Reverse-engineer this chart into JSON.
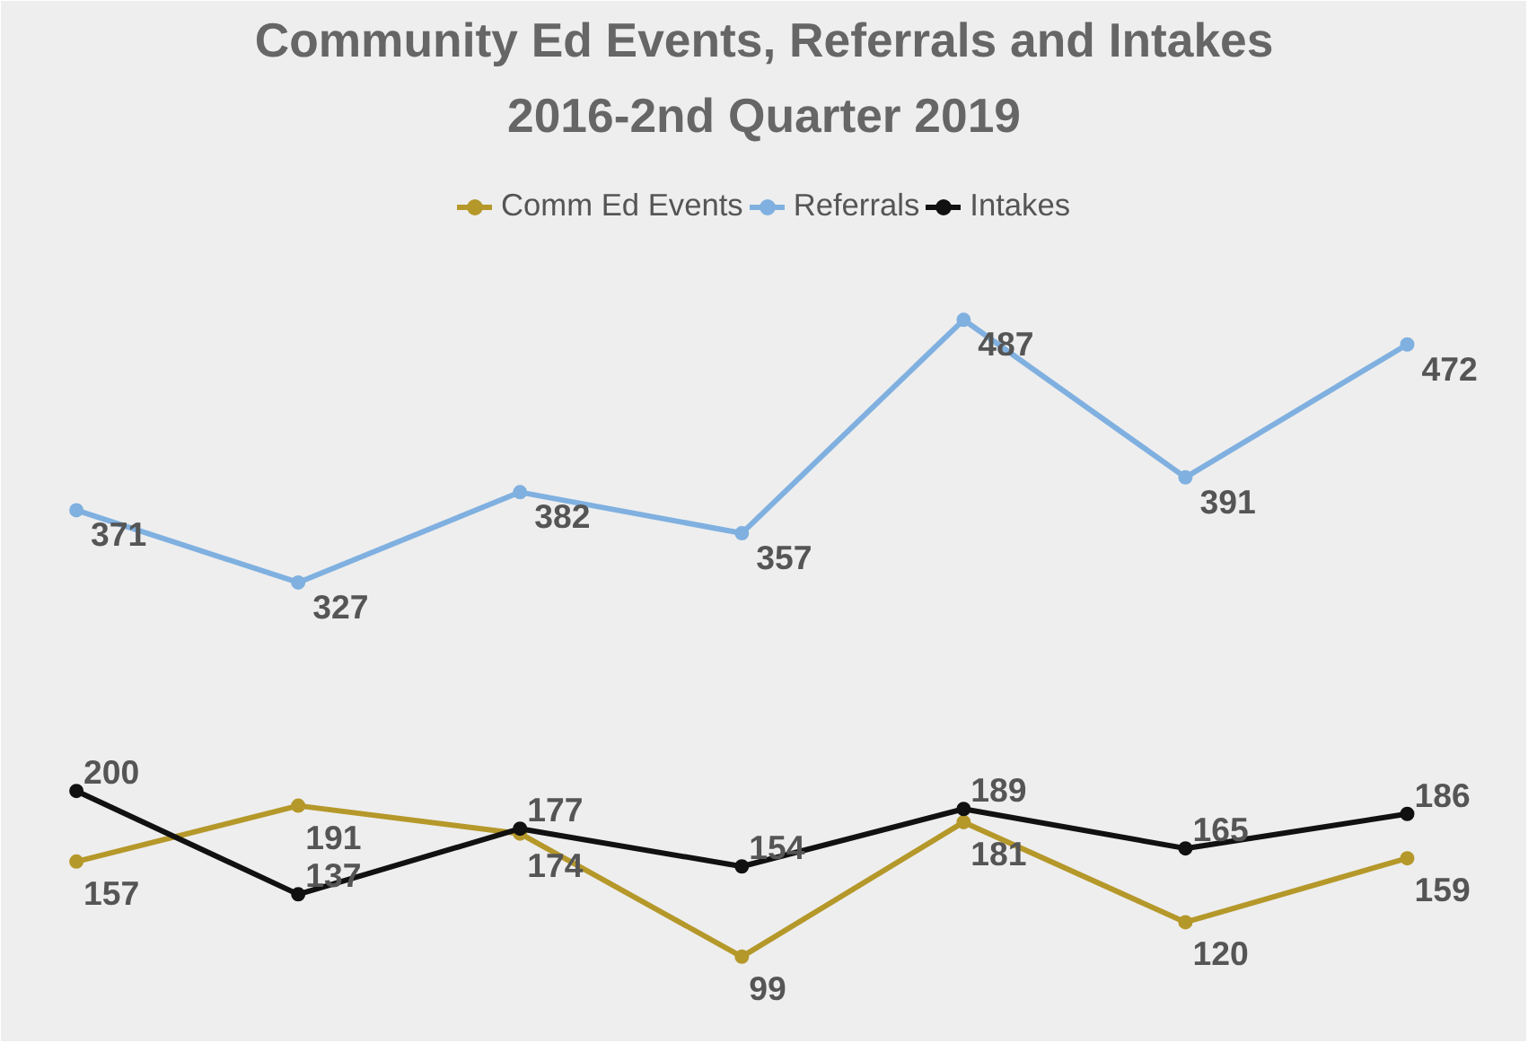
{
  "chart_data": {
    "type": "line",
    "title": "Community Ed Events, Referrals and Intakes",
    "subtitle": "2016-2nd Quarter 2019",
    "categories": [
      null,
      null,
      null,
      null,
      null,
      null,
      null
    ],
    "series": [
      {
        "name": "Comm Ed Events",
        "color": "#b5982a",
        "values": [
          157,
          191,
          174,
          99,
          181,
          120,
          159
        ]
      },
      {
        "name": "Referrals",
        "color": "#7fb0e0",
        "values": [
          371,
          327,
          382,
          357,
          487,
          391,
          472
        ]
      },
      {
        "name": "Intakes",
        "color": "#111111",
        "values": [
          200,
          137,
          177,
          154,
          189,
          165,
          186
        ]
      }
    ],
    "data_labels": true,
    "legend": "top",
    "marker": "circle",
    "line_style": "solid",
    "grid": false
  }
}
